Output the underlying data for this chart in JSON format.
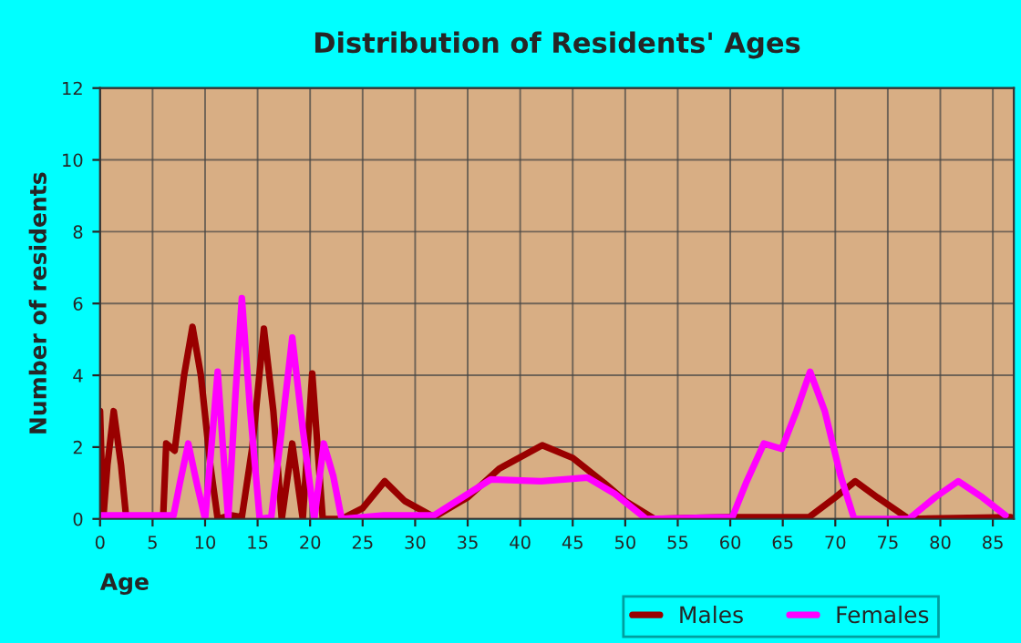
{
  "chart_data": {
    "type": "line",
    "title": "Distribution of Residents' Ages",
    "xlabel": "Age",
    "ylabel": "Number of residents",
    "xlim": [
      0,
      87
    ],
    "xticks": [
      0,
      5,
      10,
      15,
      20,
      25,
      30,
      35,
      40,
      45,
      50,
      55,
      60,
      65,
      70,
      75,
      80,
      85
    ],
    "ylim": [
      0,
      12
    ],
    "yticks": [
      0,
      2,
      4,
      6,
      8,
      10,
      12
    ],
    "grid": true,
    "legend": "bottom",
    "line_style": "solid",
    "marker": "none",
    "series": [
      {
        "name": "Males",
        "color": "#990000",
        "x": [
          0,
          0.3,
          0.7,
          1.3,
          2,
          2.5,
          4,
          6,
          6.3,
          7.1,
          8,
          8.8,
          9.6,
          10.5,
          11.2,
          12.5,
          13.5,
          14.5,
          15.6,
          16.5,
          17.3,
          18.3,
          19.3,
          20.2,
          21.2,
          23,
          25,
          27.1,
          29,
          31.8,
          35,
          38,
          42.1,
          45,
          48,
          50,
          52.8,
          60,
          67.5,
          70,
          71.9,
          74,
          77,
          86.7
        ],
        "values": [
          3,
          0,
          1.5,
          3,
          1.5,
          0,
          0,
          0,
          2.1,
          1.9,
          4,
          5.35,
          4,
          1.5,
          0,
          0.1,
          0.05,
          2,
          5.3,
          3,
          0,
          2.1,
          0,
          4.05,
          0,
          0,
          0.3,
          1.05,
          0.5,
          0.05,
          0.6,
          1.4,
          2.05,
          1.7,
          1,
          0.5,
          0,
          0.05,
          0.05,
          0.6,
          1.05,
          0.6,
          0,
          0.05
        ]
      },
      {
        "name": "Females",
        "color": "#ff00ff",
        "x": [
          0,
          7,
          7.6,
          8.4,
          9.2,
          10,
          10.6,
          11.2,
          11.7,
          12.2,
          12.9,
          13.5,
          14.3,
          15.2,
          16.3,
          17.3,
          18.3,
          19.3,
          20.4,
          21.3,
          22.2,
          23,
          27,
          31.8,
          34.5,
          37.2,
          42,
          46.4,
          49,
          52,
          60.2,
          61.5,
          63.2,
          64.9,
          66.3,
          67.6,
          69,
          70.5,
          71.8,
          77,
          79.5,
          81.7,
          84,
          86.2
        ],
        "values": [
          0.1,
          0.1,
          1,
          2.1,
          1,
          0,
          2,
          4.1,
          2,
          0,
          3.5,
          6.15,
          3,
          0,
          0.05,
          2.5,
          5.05,
          2.5,
          0,
          2.1,
          1.2,
          0,
          0.1,
          0.1,
          0.6,
          1.1,
          1.05,
          1.15,
          0.7,
          0,
          0.05,
          1,
          2.1,
          1.95,
          3,
          4.1,
          3,
          1.2,
          0,
          0,
          0.6,
          1.05,
          0.6,
          0.1
        ]
      }
    ]
  }
}
